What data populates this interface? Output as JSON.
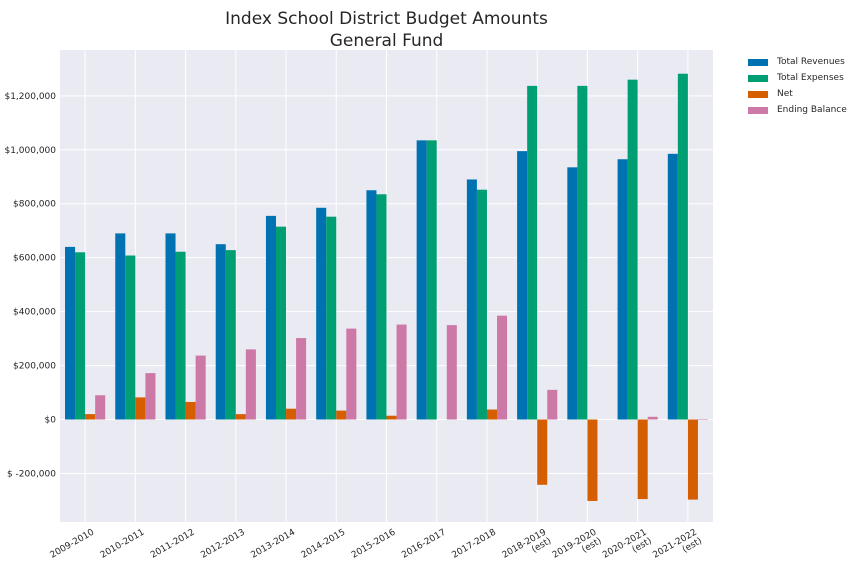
{
  "chart_data": {
    "type": "bar",
    "title_lines": [
      "Index School District Budget Amounts",
      "General Fund"
    ],
    "categories": [
      [
        "2009-2010"
      ],
      [
        "2010-2011"
      ],
      [
        "2011-2012"
      ],
      [
        "2012-2013"
      ],
      [
        "2013-2014"
      ],
      [
        "2014-2015"
      ],
      [
        "2015-2016"
      ],
      [
        "2016-2017"
      ],
      [
        "2017-2018"
      ],
      [
        "2018-2019",
        "(est)"
      ],
      [
        "2019-2020",
        "(est)"
      ],
      [
        "2020-2021",
        "(est)"
      ],
      [
        "2021-2022",
        "(est)"
      ]
    ],
    "series": [
      {
        "name": "Total Revenues",
        "color": "#0072b2",
        "values": [
          640000,
          690000,
          690000,
          650000,
          755000,
          785000,
          850000,
          1035000,
          890000,
          995000,
          935000,
          965000,
          985000
        ]
      },
      {
        "name": "Total Expenses",
        "color": "#009e73",
        "values": [
          620000,
          608000,
          622000,
          628000,
          715000,
          752000,
          835000,
          1035000,
          852000,
          1237000,
          1237000,
          1260000,
          1282000
        ]
      },
      {
        "name": "Net",
        "color": "#d55e00",
        "values": [
          20000,
          82000,
          65000,
          20000,
          40000,
          33000,
          14000,
          0,
          37000,
          -242000,
          -302000,
          -295000,
          -297000
        ]
      },
      {
        "name": "Ending Balance",
        "color": "#cc79a7",
        "values": [
          90000,
          172000,
          237000,
          260000,
          302000,
          337000,
          352000,
          350000,
          385000,
          110000,
          0,
          10000,
          2000
        ]
      }
    ],
    "y_ticks": [
      {
        "value": -200000,
        "label": "$ -200,000"
      },
      {
        "value": 0,
        "label": "$0"
      },
      {
        "value": 200000,
        "label": "$200,000"
      },
      {
        "value": 400000,
        "label": "$400,000"
      },
      {
        "value": 600000,
        "label": "$600,000"
      },
      {
        "value": 800000,
        "label": "$800,000"
      },
      {
        "value": 1000000,
        "label": "$1,000,000"
      },
      {
        "value": 1200000,
        "label": "$1,200,000"
      }
    ],
    "ylim": [
      -380000,
      1370000
    ],
    "grid": true,
    "legend_position": "outside-top-right",
    "colors": {
      "plot_background": "#eaeaf2",
      "grid": "#ffffff",
      "text": "#262626"
    }
  }
}
